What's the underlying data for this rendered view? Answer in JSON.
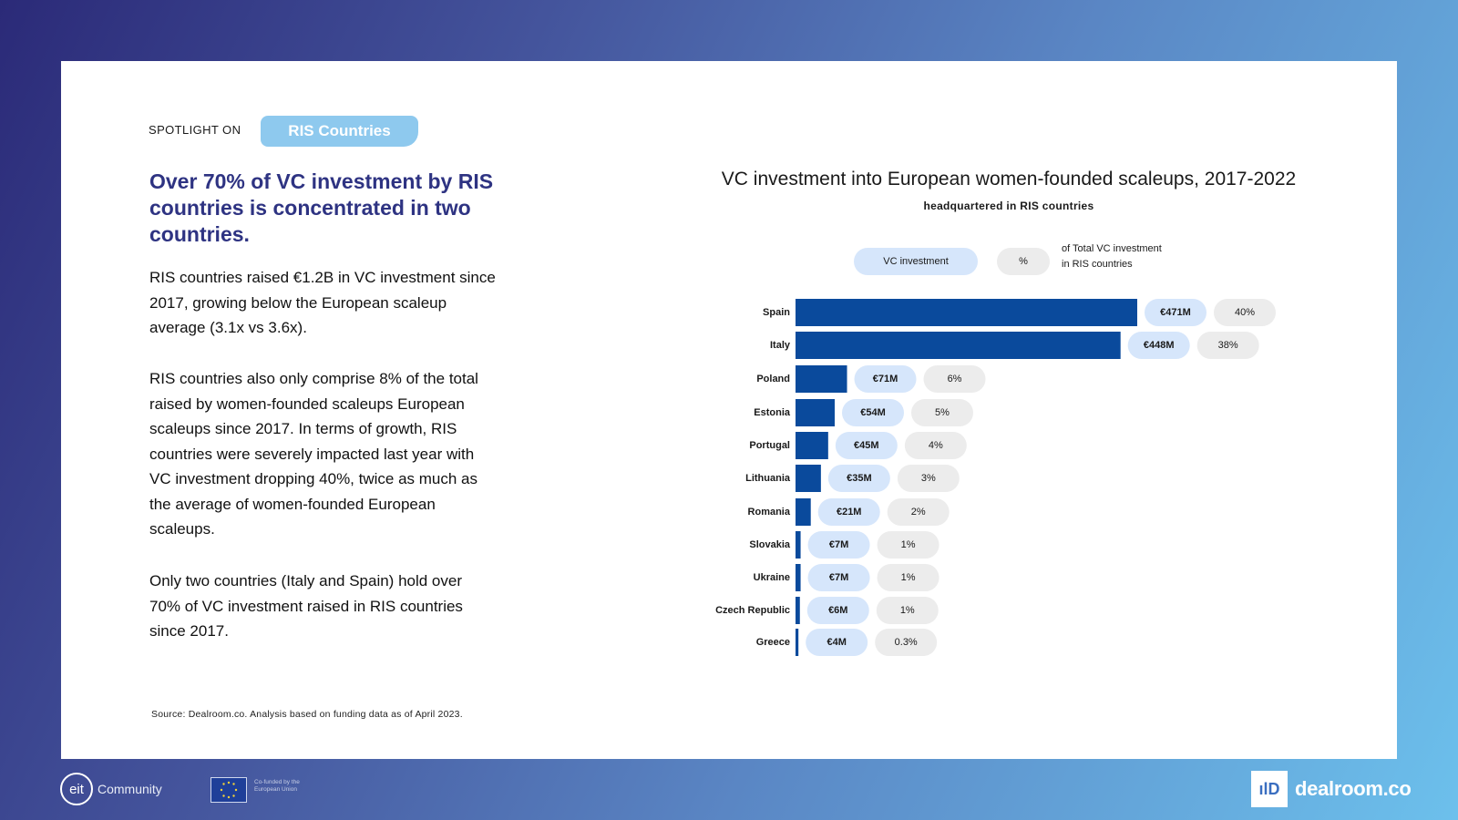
{
  "spotlight": {
    "label": "SPOTLIGHT ON",
    "badge": "RIS Countries"
  },
  "headline": "Over 70% of VC investment by RIS countries is concentrated in two countries.",
  "paragraphs": [
    "RIS countries raised €1.2B in VC investment since 2017, growing below the European scaleup average (3.1x vs 3.6x).",
    "RIS countries also only comprise 8% of the total raised by women-founded scaleups European scaleups since 2017. In terms of growth, RIS countries were severely impacted last year with VC investment dropping 40%, twice as much as the average of women-founded European scaleups.",
    "Only two countries (Italy and Spain) hold over 70% of VC investment raised in RIS countries since 2017."
  ],
  "source": "Source: Dealroom.co. Analysis based on funding data as of April 2023.",
  "legend": {
    "vc": "VC investment",
    "pct": "%",
    "note_line1": "of Total VC investment",
    "note_line2": "in RIS countries"
  },
  "colors": {
    "bar": "#0a4a9c",
    "value_pill": "#d6e6fb",
    "pct_pill": "#ececec",
    "headline": "#2e3382",
    "badge": "#8ec9ee"
  },
  "chart_data": {
    "type": "bar",
    "orientation": "horizontal",
    "title": "VC investment into European women-founded scaleups, 2017-2022",
    "subtitle": "headquartered in RIS countries",
    "xlabel": "",
    "ylabel": "",
    "unit": "€M",
    "categories": [
      "Spain",
      "Italy",
      "Poland",
      "Estonia",
      "Portugal",
      "Lithuania",
      "Romania",
      "Slovakia",
      "Ukraine",
      "Czech Republic",
      "Greece"
    ],
    "values": [
      471,
      448,
      71,
      54,
      45,
      35,
      21,
      7,
      7,
      6,
      4
    ],
    "value_labels": [
      "€471M",
      "€448M",
      "€71M",
      "€54M",
      "€45M",
      "€35M",
      "€21M",
      "€7M",
      "€7M",
      "€6M",
      "€4M"
    ],
    "percent_labels": [
      "40%",
      "38%",
      "6%",
      "5%",
      "4%",
      "3%",
      "2%",
      "1%",
      "1%",
      "1%",
      "0.3%"
    ],
    "xlim": [
      0,
      471
    ]
  },
  "footer": {
    "eit_mark": "eit",
    "eit_word": "Community",
    "eu_text": "Co-funded by the European Union",
    "dealroom_mark": "ılD",
    "dealroom_word": "dealroom.co"
  }
}
